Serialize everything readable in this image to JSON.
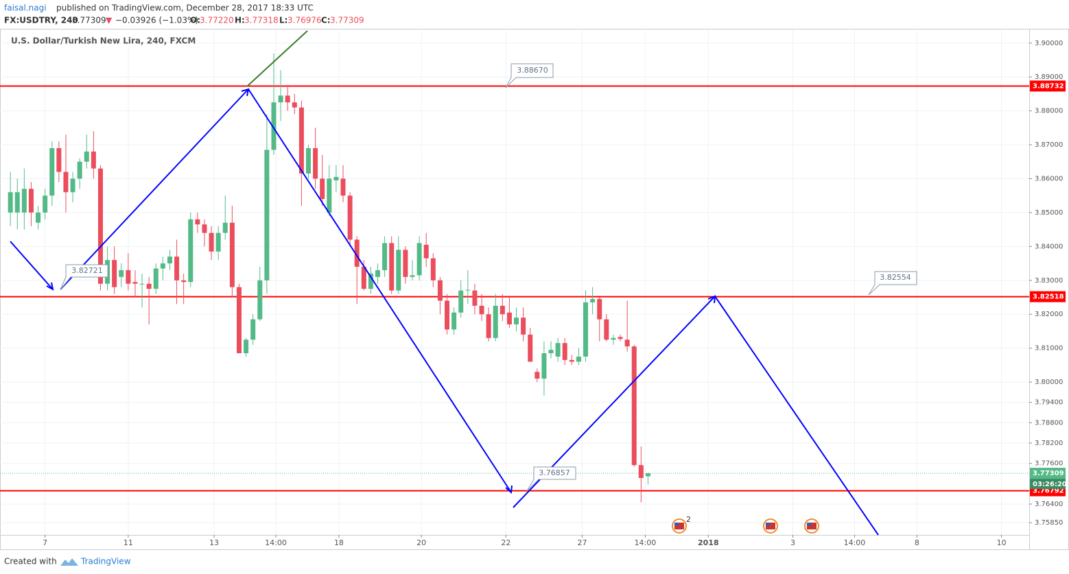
{
  "header": {
    "author": "faisal.nagi",
    "published": "published on TradingView.com, December 28, 2017 18:33 UTC",
    "symbol": "FX:USDTRY, 240",
    "last": "3.77309",
    "arrow": "▼",
    "change": "−0.03926 (−1.03%)",
    "o_label": "O:",
    "o": "3.77220",
    "h_label": "H:",
    "h": "3.77318",
    "l_label": "L:",
    "l": "3.76976",
    "c_label": "C:",
    "c": "3.77309"
  },
  "footer": {
    "created": "Created with",
    "brand": "TradingView"
  },
  "chart_data": {
    "type": "candlestick",
    "title": "U.S. Dollar/Turkish New Lira, 240, FXCM",
    "up_color": "#53b987",
    "down_color": "#eb4d5c",
    "ohlc": [
      [
        3.85,
        3.862,
        3.846,
        3.856
      ],
      [
        3.85,
        3.86,
        3.845,
        3.856
      ],
      [
        3.85,
        3.863,
        3.845,
        3.857
      ],
      [
        3.857,
        3.859,
        3.846,
        3.85
      ],
      [
        3.847,
        3.852,
        3.845,
        3.85
      ],
      [
        3.85,
        3.857,
        3.848,
        3.855
      ],
      [
        3.855,
        3.871,
        3.852,
        3.869
      ],
      [
        3.869,
        3.871,
        3.859,
        3.862
      ],
      [
        3.862,
        3.873,
        3.85,
        3.856
      ],
      [
        3.856,
        3.862,
        3.853,
        3.86
      ],
      [
        3.86,
        3.866,
        3.857,
        3.865
      ],
      [
        3.865,
        3.873,
        3.863,
        3.868
      ],
      [
        3.868,
        3.874,
        3.86,
        3.863
      ],
      [
        3.863,
        3.864,
        3.827,
        3.829
      ],
      [
        3.829,
        3.84,
        3.827,
        3.836
      ],
      [
        3.836,
        3.84,
        3.826,
        3.828
      ],
      [
        3.831,
        3.835,
        3.828,
        3.833
      ],
      [
        3.833,
        3.838,
        3.827,
        3.829
      ],
      [
        3.8295,
        3.833,
        3.825,
        3.829
      ],
      [
        3.829,
        3.832,
        3.822,
        3.829
      ],
      [
        3.829,
        3.831,
        3.817,
        3.8275
      ],
      [
        3.8275,
        3.835,
        3.826,
        3.8335
      ],
      [
        3.8335,
        3.837,
        3.83,
        3.835
      ],
      [
        3.835,
        3.839,
        3.833,
        3.837
      ],
      [
        3.837,
        3.842,
        3.823,
        3.83
      ],
      [
        3.83,
        3.832,
        3.823,
        3.8295
      ],
      [
        3.8295,
        3.85,
        3.828,
        3.848
      ],
      [
        3.848,
        3.85,
        3.844,
        3.8465
      ],
      [
        3.8465,
        3.848,
        3.84,
        3.844
      ],
      [
        3.844,
        3.846,
        3.836,
        3.8385
      ],
      [
        3.8385,
        3.846,
        3.836,
        3.844
      ],
      [
        3.844,
        3.855,
        3.842,
        3.847
      ],
      [
        3.847,
        3.852,
        3.825,
        3.828
      ],
      [
        3.828,
        3.829,
        3.8085,
        3.8085
      ],
      [
        3.8085,
        3.813,
        3.8075,
        3.8125
      ],
      [
        3.8125,
        3.82,
        3.811,
        3.8185
      ],
      [
        3.8185,
        3.834,
        3.818,
        3.83
      ],
      [
        3.83,
        3.879,
        3.826,
        3.8685
      ],
      [
        3.8685,
        3.897,
        3.867,
        3.8825
      ],
      [
        3.8825,
        3.892,
        3.877,
        3.8845
      ],
      [
        3.8845,
        3.887,
        3.88,
        3.8825
      ],
      [
        3.8825,
        3.885,
        3.879,
        3.881
      ],
      [
        3.881,
        3.883,
        3.852,
        3.8615
      ],
      [
        3.8615,
        3.87,
        3.86,
        3.869
      ],
      [
        3.869,
        3.875,
        3.857,
        3.86
      ],
      [
        3.86,
        3.867,
        3.852,
        3.854
      ],
      [
        3.85,
        3.864,
        3.849,
        3.86
      ],
      [
        3.8595,
        3.864,
        3.856,
        3.8605
      ],
      [
        3.86,
        3.864,
        3.853,
        3.855
      ],
      [
        3.855,
        3.856,
        3.84,
        3.842
      ],
      [
        3.842,
        3.843,
        3.823,
        3.834
      ],
      [
        3.834,
        3.836,
        3.827,
        3.8275
      ],
      [
        3.8275,
        3.834,
        3.826,
        3.832
      ],
      [
        3.831,
        3.835,
        3.829,
        3.833
      ],
      [
        3.833,
        3.843,
        3.831,
        3.841
      ],
      [
        3.841,
        3.843,
        3.826,
        3.827
      ],
      [
        3.827,
        3.843,
        3.826,
        3.839
      ],
      [
        3.839,
        3.84,
        3.829,
        3.831
      ],
      [
        3.831,
        3.836,
        3.83,
        3.8315
      ],
      [
        3.8315,
        3.843,
        3.83,
        3.841
      ],
      [
        3.8405,
        3.844,
        3.834,
        3.8365
      ],
      [
        3.8365,
        3.838,
        3.828,
        3.83
      ],
      [
        3.83,
        3.831,
        3.82,
        3.824
      ],
      [
        3.824,
        3.826,
        3.814,
        3.8155
      ],
      [
        3.8155,
        3.822,
        3.814,
        3.8205
      ],
      [
        3.8205,
        3.83,
        3.819,
        3.827
      ],
      [
        3.827,
        3.833,
        3.823,
        3.8272
      ],
      [
        3.827,
        3.829,
        3.82,
        3.8225
      ],
      [
        3.8225,
        3.826,
        3.818,
        3.82
      ],
      [
        3.82,
        3.822,
        3.812,
        3.813
      ],
      [
        3.813,
        3.826,
        3.812,
        3.8225
      ],
      [
        3.8225,
        3.826,
        3.818,
        3.82
      ],
      [
        3.8205,
        3.825,
        3.816,
        3.817
      ],
      [
        3.817,
        3.822,
        3.815,
        3.819
      ],
      [
        3.819,
        3.822,
        3.812,
        3.814
      ],
      [
        3.814,
        3.816,
        3.806,
        3.806
      ],
      [
        3.803,
        3.804,
        3.8,
        3.801
      ],
      [
        3.801,
        3.812,
        3.796,
        3.8085
      ],
      [
        3.8085,
        3.812,
        3.807,
        3.8095
      ],
      [
        3.8075,
        3.813,
        3.806,
        3.8115
      ],
      [
        3.8115,
        3.813,
        3.805,
        3.8065
      ],
      [
        3.8065,
        3.808,
        3.805,
        3.806
      ],
      [
        3.806,
        3.81,
        3.805,
        3.8075
      ],
      [
        3.8075,
        3.827,
        3.806,
        3.8235
      ],
      [
        3.8235,
        3.828,
        3.82,
        3.8245
      ],
      [
        3.8245,
        3.825,
        3.812,
        3.8185
      ],
      [
        3.8185,
        3.82,
        3.812,
        3.8125
      ],
      [
        3.8125,
        3.814,
        3.811,
        3.813
      ],
      [
        3.8133,
        3.814,
        3.812,
        3.8127
      ],
      [
        3.8125,
        3.824,
        3.809,
        3.8105
      ],
      [
        3.8105,
        3.811,
        3.775,
        3.7755
      ],
      [
        3.7755,
        3.781,
        3.7645,
        3.7717
      ],
      [
        3.7722,
        3.77318,
        3.76976,
        3.77309
      ]
    ],
    "xlim": [
      -1.5,
      147
    ],
    "xticks": [
      {
        "value": 5,
        "label": "7"
      },
      {
        "value": 17,
        "label": "11"
      },
      {
        "value": 29.4,
        "label": "13"
      },
      {
        "value": 38.3,
        "label": "14:00"
      },
      {
        "value": 47.4,
        "label": "18"
      },
      {
        "value": 59.3,
        "label": "20"
      },
      {
        "value": 71.5,
        "label": "22"
      },
      {
        "value": 82.5,
        "label": "27"
      },
      {
        "value": 91.6,
        "label": "14:00"
      },
      {
        "value": 100.7,
        "label": "2018"
      },
      {
        "value": 112.9,
        "label": "3"
      },
      {
        "value": 121.8,
        "label": "14:00"
      },
      {
        "value": 130.8,
        "label": "8"
      },
      {
        "value": 143,
        "label": "10"
      }
    ],
    "ylim": [
      3.7549,
      3.9038
    ],
    "yticks": [
      {
        "value": 3.9,
        "label": "3.90000"
      },
      {
        "value": 3.89,
        "label": "3.89000"
      },
      {
        "value": 3.88,
        "label": "3.88000"
      },
      {
        "value": 3.87,
        "label": "3.87000"
      },
      {
        "value": 3.86,
        "label": "3.86000"
      },
      {
        "value": 3.85,
        "label": "3.85000"
      },
      {
        "value": 3.84,
        "label": "3.84000"
      },
      {
        "value": 3.83,
        "label": "3.83000"
      },
      {
        "value": 3.82,
        "label": "3.82000"
      },
      {
        "value": 3.81,
        "label": "3.81000"
      },
      {
        "value": 3.8,
        "label": "3.80000"
      },
      {
        "value": 3.794,
        "label": "3.79400"
      },
      {
        "value": 3.788,
        "label": "3.78800"
      },
      {
        "value": 3.782,
        "label": "3.78200"
      },
      {
        "value": 3.776,
        "label": "3.77600"
      },
      {
        "value": 3.764,
        "label": "3.76400"
      },
      {
        "value": 3.7585,
        "label": "3.75850"
      }
    ],
    "grid": true,
    "levels": [
      {
        "value": 3.88732,
        "label": "3.88732"
      },
      {
        "value": 3.82518,
        "label": "3.82518"
      },
      {
        "value": 3.76792,
        "label": "3.76792"
      }
    ],
    "level_color": "#ff0000",
    "current": {
      "value": 3.77309,
      "label": "3.77309",
      "countdown": "03:26:20",
      "color": "#53b987"
    },
    "callouts": [
      "3.88670",
      "3.82721",
      "3.82554",
      "3.76857"
    ],
    "event_count": "2"
  }
}
